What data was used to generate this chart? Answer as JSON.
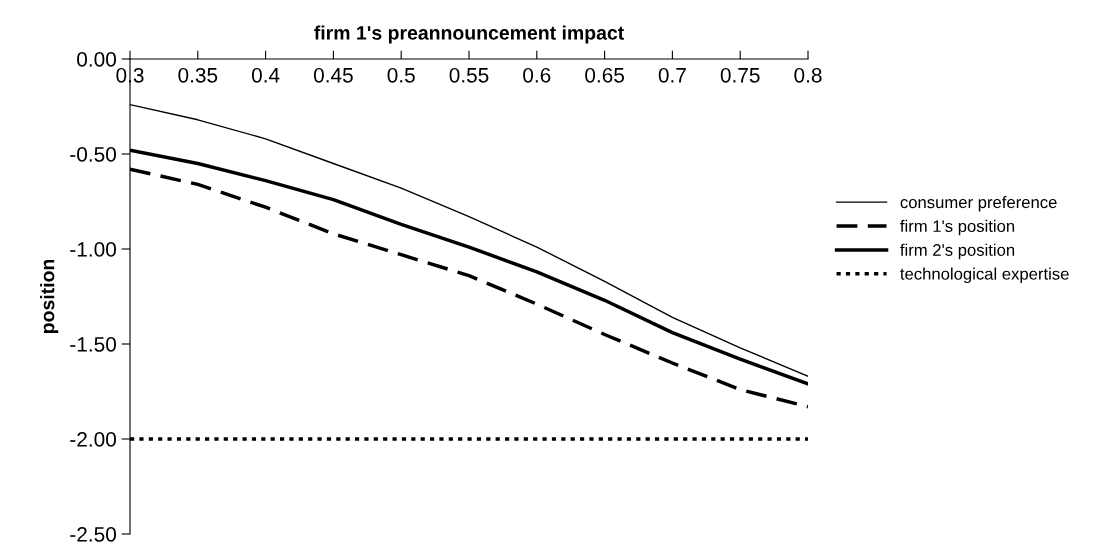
{
  "chart_data": {
    "type": "line",
    "title": "firm 1's preannouncement impact",
    "ylabel": "position",
    "categories": [
      "0.3",
      "0.35",
      "0.4",
      "0.45",
      "0.5",
      "0.55",
      "0.6",
      "0.65",
      "0.7",
      "0.75",
      "0.8"
    ],
    "series": [
      {
        "name": "consumer preference",
        "color": "#000000",
        "line_style": "solid",
        "values": [
          -0.24,
          -0.32,
          -0.42,
          -0.55,
          -0.68,
          -0.83,
          -0.99,
          -1.17,
          -1.36,
          -1.52,
          -1.67
        ]
      },
      {
        "name": "firm 1's position",
        "color": "#000000",
        "line_style": "dashed",
        "values": [
          -0.58,
          -0.66,
          -0.78,
          -0.92,
          -1.03,
          -1.14,
          -1.29,
          -1.45,
          -1.6,
          -1.74,
          -1.83
        ]
      },
      {
        "name": "firm 2's position",
        "color": "#000000",
        "line_style": "solid",
        "values": [
          -0.48,
          -0.55,
          -0.64,
          -0.74,
          -0.87,
          -0.99,
          -1.12,
          -1.27,
          -1.44,
          -1.58,
          -1.71
        ]
      },
      {
        "name": "technological expertise",
        "color": "#000000",
        "line_style": "dotted",
        "values": [
          -2.0,
          -2.0,
          -2.0,
          -2.0,
          -2.0,
          -2.0,
          -2.0,
          -2.0,
          -2.0,
          -2.0,
          -2.0
        ]
      }
    ],
    "ylim": [
      -2.5,
      0
    ],
    "yticks": [
      {
        "value": 0,
        "label": "0.00"
      },
      {
        "value": -0.5,
        "label": "-0.50"
      },
      {
        "value": -1,
        "label": "-1.00"
      },
      {
        "value": -1.5,
        "label": "-1.50"
      },
      {
        "value": -2,
        "label": "-2.00"
      },
      {
        "value": -2.5,
        "label": "-2.50"
      }
    ],
    "grid": false,
    "legend": "right",
    "marker": "none"
  }
}
